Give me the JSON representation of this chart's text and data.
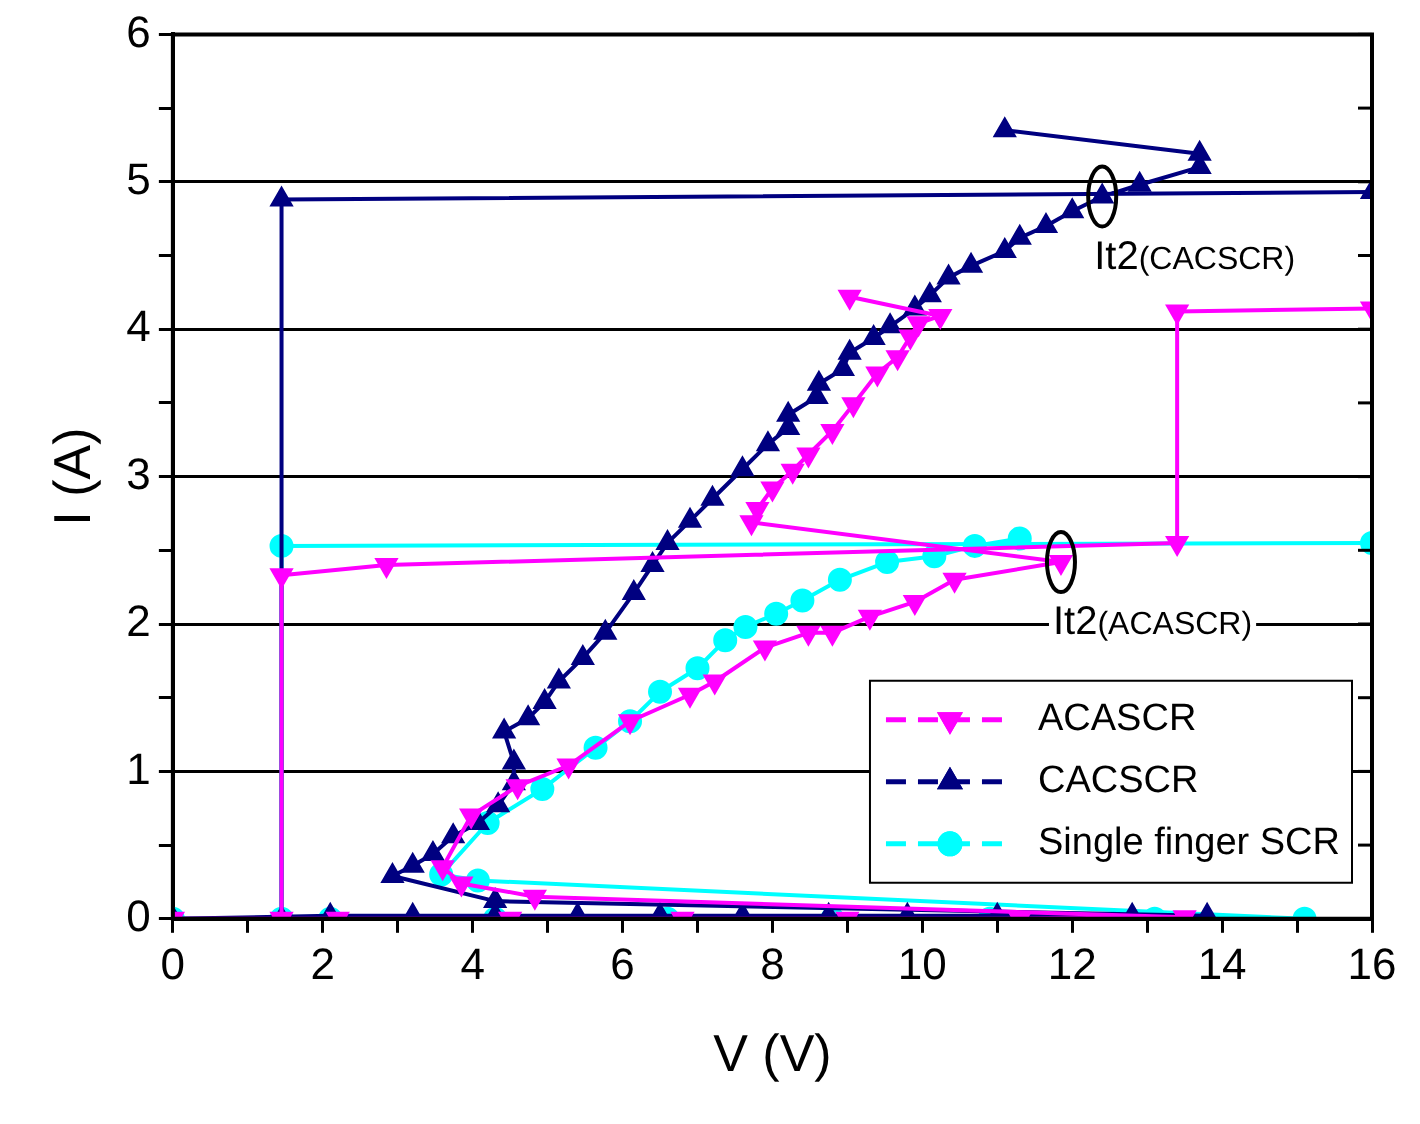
{
  "chart_data": {
    "type": "line",
    "xlabel": "V (V)",
    "ylabel": "I (A)",
    "xlim": [
      0,
      16
    ],
    "xticks": [
      0,
      {
        "value": 1,
        "label": null
      },
      2,
      {
        "value": 3,
        "label": null
      },
      4,
      {
        "value": 5,
        "label": null
      },
      6,
      {
        "value": 7,
        "label": null
      },
      8,
      {
        "value": 9,
        "label": null
      },
      10,
      {
        "value": 11,
        "label": null
      },
      12,
      {
        "value": 13,
        "label": null
      },
      14,
      {
        "value": 15,
        "label": null
      },
      16
    ],
    "ylim": [
      0,
      6
    ],
    "yticks": [
      0,
      {
        "value": 0.5,
        "label": null
      },
      1,
      {
        "value": 1.5,
        "label": null
      },
      2,
      {
        "value": 2.5,
        "label": null
      },
      3,
      {
        "value": 3.5,
        "label": null
      },
      4,
      {
        "value": 4.5,
        "label": null
      },
      5,
      {
        "value": 5.5,
        "label": null
      },
      6
    ],
    "grid": "y",
    "legend": "bottom right",
    "line_style": "solid",
    "series": [
      {
        "name": "ACASCR",
        "color": "#ff00ff",
        "marker": "triangle-down",
        "x": [
          16,
          13.4,
          13.4,
          2.85,
          1.45,
          1.45,
          0,
          2.2,
          4.5,
          6.8,
          9,
          11.3,
          13.5,
          4.83,
          3.85,
          3.6,
          3.98,
          4.6,
          5.28,
          6.1,
          6.9,
          7.23,
          7.9,
          8.48,
          8.8,
          9.3,
          9.9,
          10.43,
          11.85,
          7.72,
          7.8,
          8.0,
          8.27,
          8.48,
          8.8,
          9.08,
          9.4,
          9.67,
          9.84,
          9.95,
          10.24,
          9.03
        ],
        "values": [
          4.14,
          4.12,
          2.55,
          2.4,
          2.33,
          0,
          0,
          0,
          0,
          0,
          0,
          0,
          0.01,
          0.15,
          0.24,
          0.35,
          0.7,
          0.9,
          1.04,
          1.34,
          1.52,
          1.61,
          1.84,
          1.94,
          1.94,
          2.05,
          2.15,
          2.3,
          2.42,
          2.69,
          2.78,
          2.92,
          3.04,
          3.15,
          3.31,
          3.49,
          3.7,
          3.81,
          3.95,
          4.04,
          4.09,
          4.22
        ]
      },
      {
        "name": "CACSCR",
        "color": "#000080",
        "marker": "triangle",
        "x": [
          16,
          1.45,
          1.45,
          0,
          2.1,
          3.2,
          4.3,
          5.4,
          6.5,
          7.6,
          8.75,
          9.8,
          11,
          12.8,
          13.8,
          4.3,
          2.93,
          3.2,
          3.47,
          3.74,
          4.07,
          4.34,
          4.55,
          4.55,
          4.42,
          4.74,
          4.96,
          5.15,
          5.47,
          5.77,
          6.15,
          6.4,
          6.6,
          6.9,
          7.2,
          7.6,
          7.94,
          8.21,
          8.21,
          8.59,
          8.62,
          8.94,
          9.03,
          9.35,
          9.57,
          9.9,
          10.1,
          10.35,
          10.65,
          11.1,
          11.3,
          11.65,
          12.0,
          12.4,
          12.9,
          13.7,
          13.7,
          11.1
        ],
        "values": [
          4.93,
          4.88,
          0,
          0,
          0.02,
          0.02,
          0.02,
          0.02,
          0.02,
          0.02,
          0.02,
          0.02,
          0.02,
          0.02,
          0.02,
          0.12,
          0.29,
          0.36,
          0.44,
          0.56,
          0.65,
          0.77,
          0.92,
          1.06,
          1.27,
          1.36,
          1.47,
          1.61,
          1.77,
          1.94,
          2.21,
          2.4,
          2.55,
          2.7,
          2.85,
          3.05,
          3.22,
          3.33,
          3.42,
          3.54,
          3.63,
          3.73,
          3.84,
          3.94,
          4.02,
          4.14,
          4.23,
          4.35,
          4.43,
          4.53,
          4.62,
          4.7,
          4.8,
          4.9,
          4.98,
          5.1,
          5.19,
          5.35
        ]
      },
      {
        "name": "Single finger SCR",
        "color": "#00ffff",
        "marker": "circle",
        "x": [
          16,
          1.45,
          1.45,
          0,
          2.1,
          4.3,
          6.6,
          8.8,
          10.9,
          13.1,
          15.1,
          4.07,
          3.58,
          4.2,
          4.93,
          5.64,
          6.1,
          6.5,
          7.0,
          7.37,
          7.64,
          8.05,
          8.4,
          8.9,
          9.53,
          10.16,
          10.7,
          11.3
        ],
        "values": [
          2.55,
          2.53,
          0,
          0,
          0,
          0,
          0,
          0,
          0,
          0,
          0,
          0.26,
          0.3,
          0.65,
          0.88,
          1.16,
          1.34,
          1.54,
          1.7,
          1.89,
          1.98,
          2.07,
          2.16,
          2.3,
          2.42,
          2.46,
          2.53,
          2.58
        ]
      }
    ],
    "annotations": [
      {
        "text": "It2(CACSCR)",
        "x": 12.4,
        "y": 4.9
      },
      {
        "text": "It2(ACASCR)",
        "x": 11.85,
        "y": 2.42
      }
    ]
  }
}
